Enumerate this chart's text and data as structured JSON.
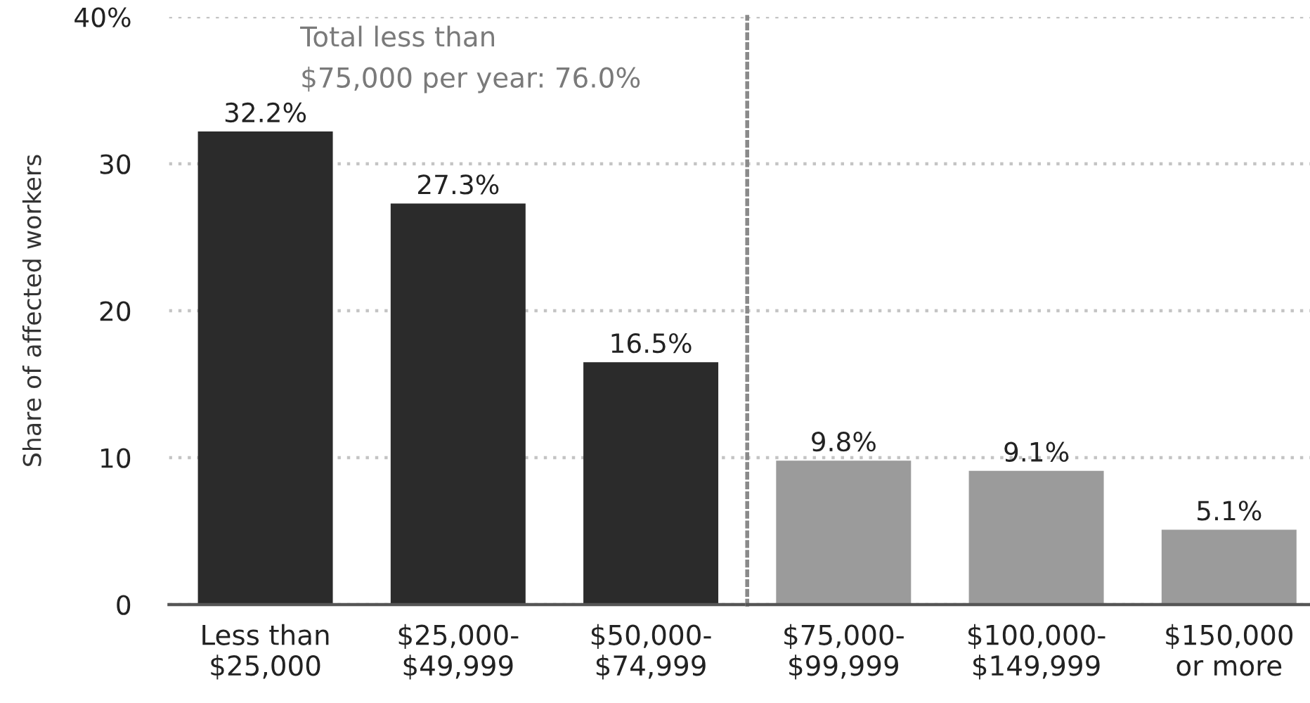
{
  "chart_data": [
    {
      "type": "bar",
      "ylabel": "Share of affected workers",
      "categories": [
        "Less than\n$25,000",
        "$25,000-\n$49,999",
        "$50,000-\n$74,999"
      ],
      "values": [
        32.2,
        27.3,
        16.5
      ],
      "value_labels": [
        "32.2%",
        "27.3%",
        "16.5%"
      ],
      "color": "#2b2b2b",
      "ylim": [
        0,
        40
      ],
      "yticks": [
        0,
        10,
        20,
        30,
        {
          "value": 40,
          "label": "40%"
        }
      ],
      "grid": "y",
      "annotations": [
        "Total less than\n$75,000 per year: 76.0%"
      ]
    },
    {
      "type": "bar",
      "categories": [
        "$75,000-\n$99,999",
        "$100,000-\n$149,999",
        "$150,000\nor more"
      ],
      "values": [
        9.8,
        9.1,
        5.1
      ],
      "value_labels": [
        "9.8%",
        "9.1%",
        "5.1%"
      ],
      "color": "#9b9b9b",
      "ylim": [
        0,
        40
      ],
      "yticks": [
        0,
        10,
        20,
        30,
        40
      ],
      "grid": "y",
      "tick_labels": "x"
    }
  ]
}
